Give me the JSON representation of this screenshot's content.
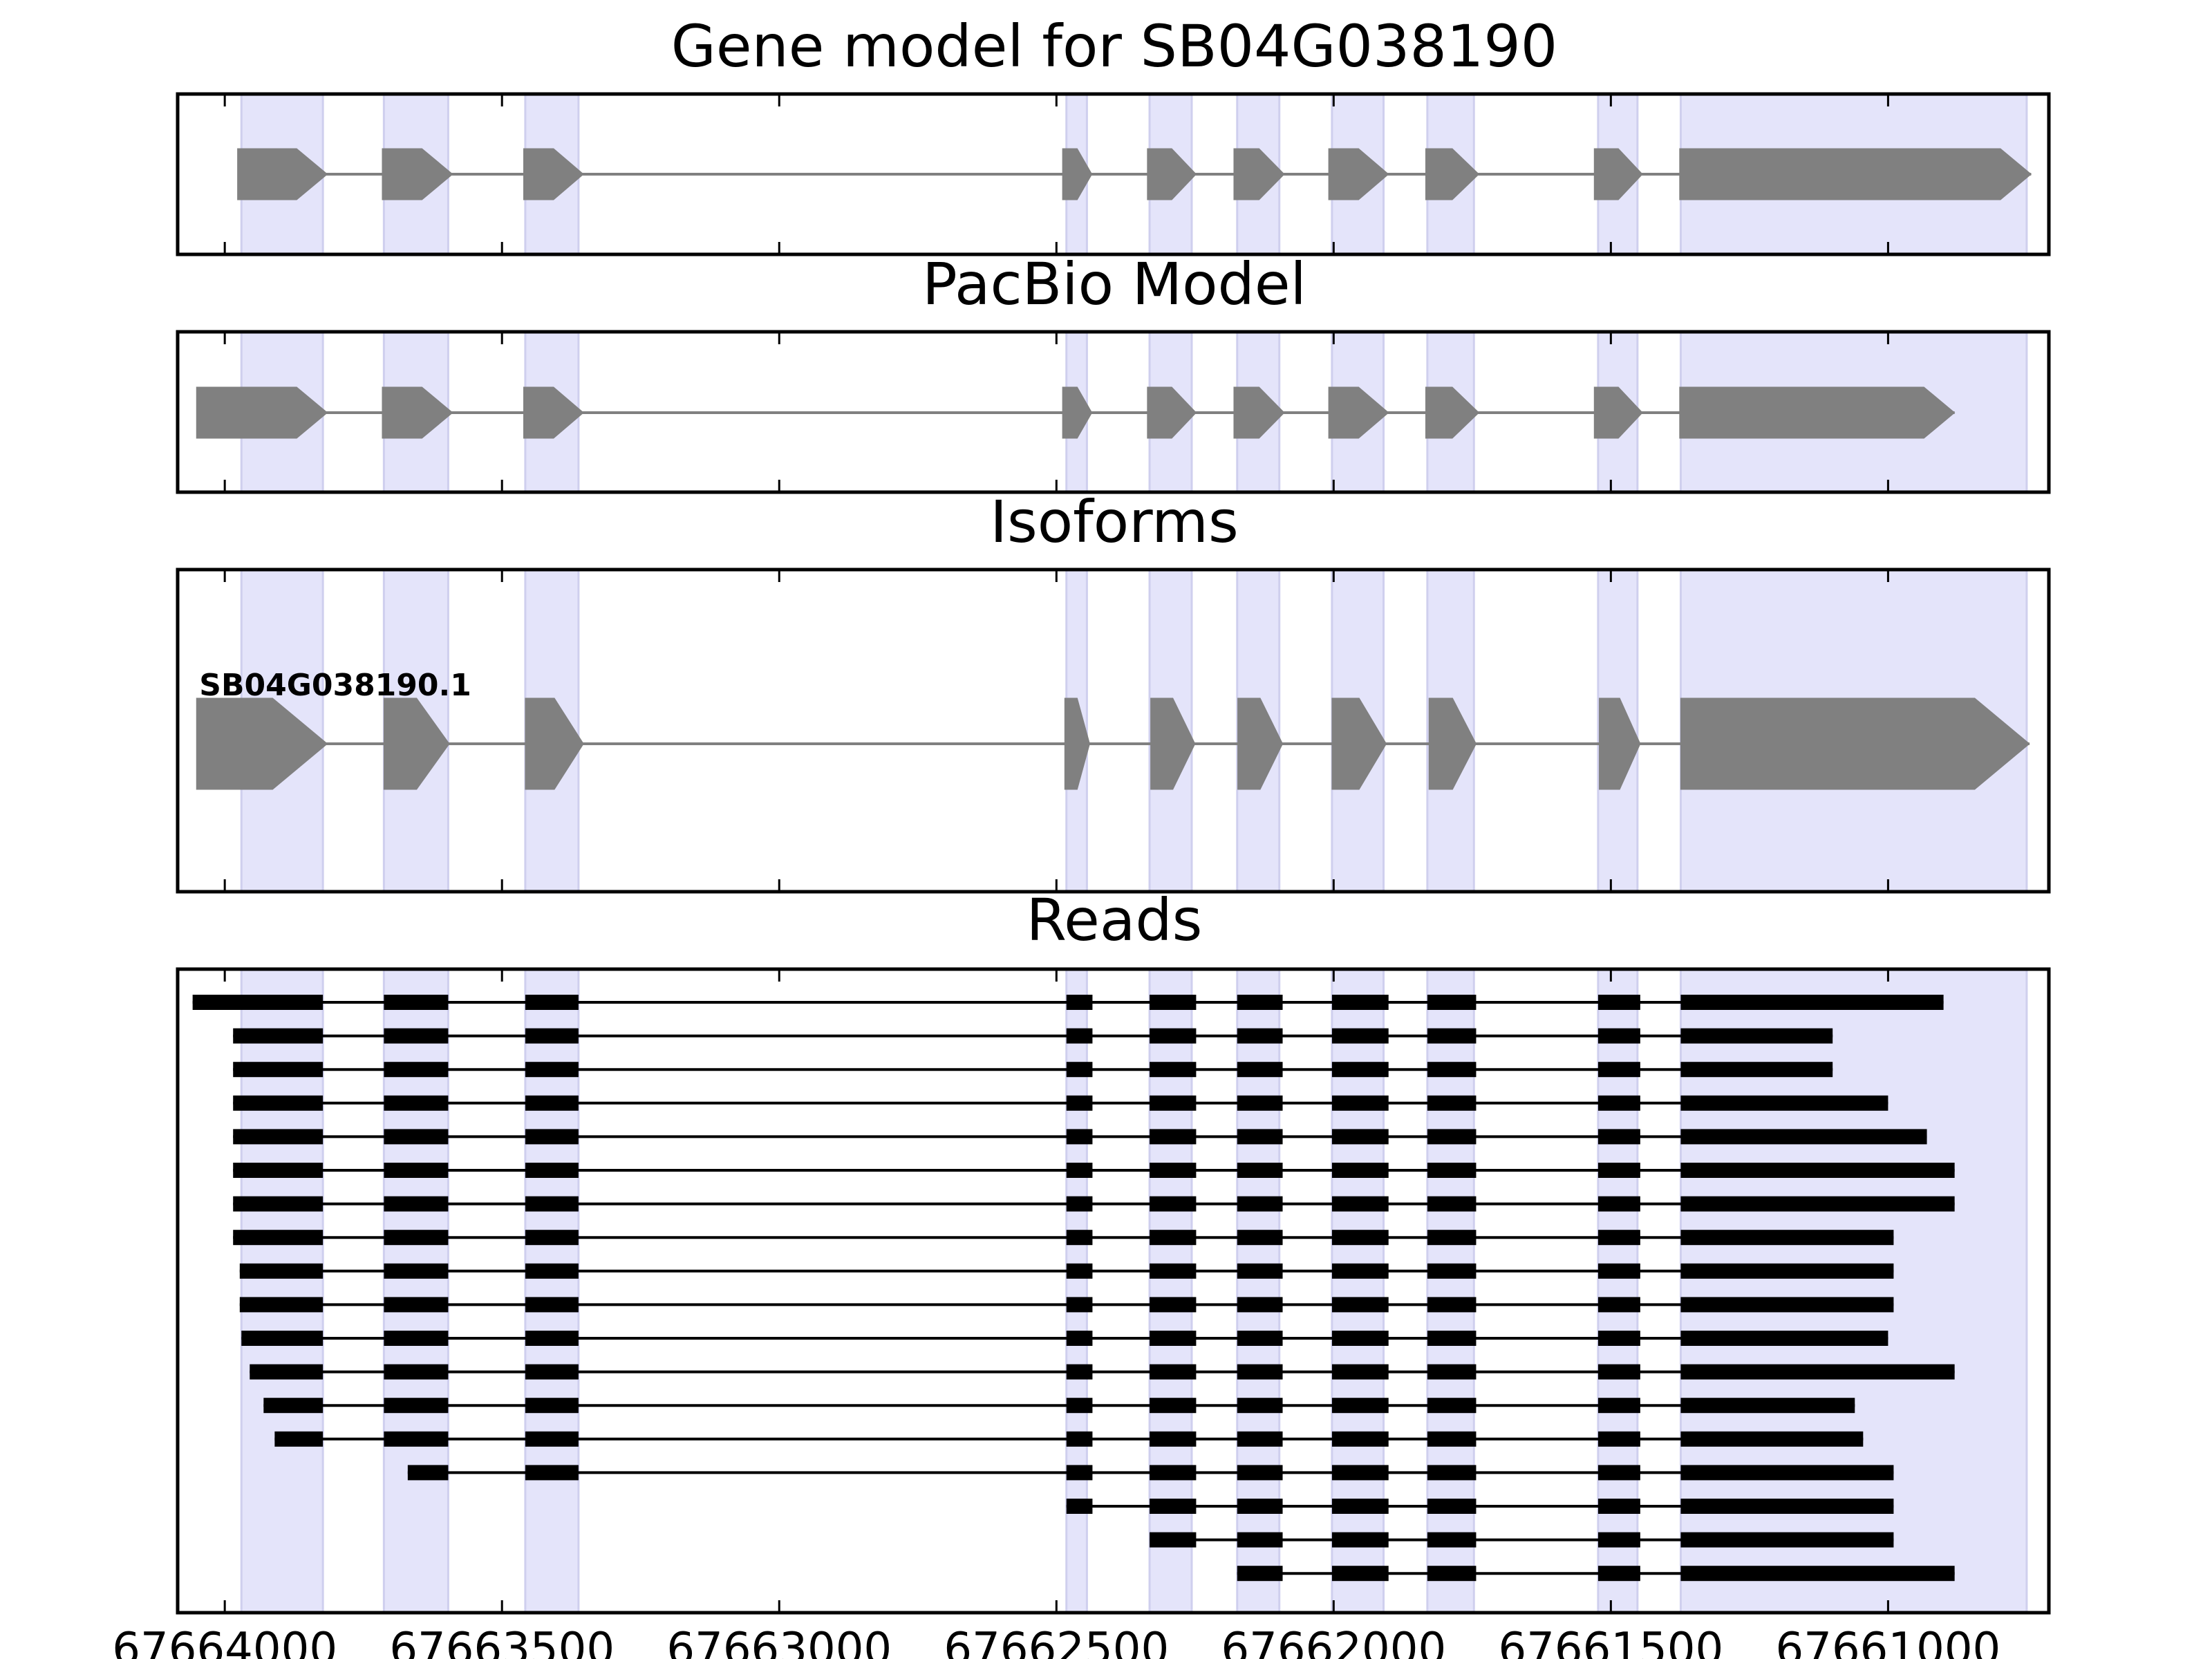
{
  "panels": [
    {
      "key": "gene_model",
      "title": "Gene model for SB04G038190"
    },
    {
      "key": "pacbio_model",
      "title": "PacBio Model"
    },
    {
      "key": "isoforms",
      "title": "Isoforms"
    },
    {
      "key": "reads",
      "title": "Reads"
    }
  ],
  "axis": {
    "x_min": 67664085,
    "x_max": 67660710,
    "ticks": [
      67664000,
      67663500,
      67663000,
      67662500,
      67662000,
      67661500,
      67661000
    ],
    "tick_labels": [
      "67664000",
      "67663500",
      "67663000",
      "67662500",
      "67662000",
      "67661500",
      "67661000"
    ]
  },
  "colors": {
    "exon_highlight": "#e4e4fa",
    "exon_highlight_edge": "#cfcfee",
    "model_exon": "#808080",
    "model_intron": "#808080",
    "read": "#000000",
    "frame": "#000000"
  },
  "exon_regions": [
    [
      67663970,
      67663823
    ],
    [
      67663713,
      67663597
    ],
    [
      67663458,
      67663362
    ],
    [
      67662482,
      67662445
    ],
    [
      67662332,
      67662256
    ],
    [
      67662174,
      67662098
    ],
    [
      67662003,
      67661910
    ],
    [
      67661831,
      67661747
    ],
    [
      67661523,
      67661452
    ],
    [
      67661374,
      67660750
    ]
  ],
  "gene_model": {
    "exons": [
      [
        67663977,
        67663815
      ],
      [
        67663716,
        67663589
      ],
      [
        67663461,
        67663353
      ],
      [
        67662489,
        67662436
      ],
      [
        67662336,
        67662248
      ],
      [
        67662180,
        67662089
      ],
      [
        67662009,
        67661901
      ],
      [
        67661834,
        67661738
      ],
      [
        67661530,
        67661443
      ],
      [
        67661376,
        67660742
      ]
    ]
  },
  "pacbio_model": {
    "exons": [
      [
        67664051,
        67663815
      ],
      [
        67663716,
        67663589
      ],
      [
        67663461,
        67663353
      ],
      [
        67662489,
        67662436
      ],
      [
        67662336,
        67662248
      ],
      [
        67662180,
        67662089
      ],
      [
        67662009,
        67661901
      ],
      [
        67661834,
        67661738
      ],
      [
        67661530,
        67661443
      ],
      [
        67661376,
        67660880
      ]
    ]
  },
  "isoforms": [
    {
      "label": "SB04G038190.1",
      "exons": [
        [
          67664051,
          67663815
        ],
        [
          67663713,
          67663595
        ],
        [
          67663458,
          67663353
        ],
        [
          67662485,
          67662440
        ],
        [
          67662330,
          67662250
        ],
        [
          67662173,
          67662092
        ],
        [
          67662003,
          67661905
        ],
        [
          67661828,
          67661743
        ],
        [
          67661521,
          67661447
        ],
        [
          67661374,
          67660745
        ]
      ]
    }
  ],
  "reads": [
    {
      "exons": [
        [
          67664058,
          67663823
        ],
        [
          67663713,
          67663597
        ],
        [
          67663458,
          67663362
        ],
        [
          67662482,
          67662435
        ],
        [
          67662332,
          67662248
        ],
        [
          67662174,
          67662092
        ],
        [
          67662003,
          67661901
        ],
        [
          67661831,
          67661743
        ],
        [
          67661523,
          67661447
        ],
        [
          67661374,
          67660900
        ]
      ]
    },
    {
      "exons": [
        [
          67663985,
          67663823
        ],
        [
          67663713,
          67663597
        ],
        [
          67663458,
          67663362
        ],
        [
          67662482,
          67662435
        ],
        [
          67662332,
          67662248
        ],
        [
          67662174,
          67662092
        ],
        [
          67662003,
          67661901
        ],
        [
          67661831,
          67661743
        ],
        [
          67661523,
          67661447
        ],
        [
          67661374,
          67661100
        ]
      ]
    },
    {
      "exons": [
        [
          67663985,
          67663823
        ],
        [
          67663713,
          67663597
        ],
        [
          67663458,
          67663362
        ],
        [
          67662482,
          67662435
        ],
        [
          67662332,
          67662248
        ],
        [
          67662174,
          67662092
        ],
        [
          67662003,
          67661901
        ],
        [
          67661831,
          67661743
        ],
        [
          67661523,
          67661447
        ],
        [
          67661374,
          67661100
        ]
      ]
    },
    {
      "exons": [
        [
          67663985,
          67663823
        ],
        [
          67663713,
          67663597
        ],
        [
          67663458,
          67663362
        ],
        [
          67662482,
          67662435
        ],
        [
          67662332,
          67662248
        ],
        [
          67662174,
          67662092
        ],
        [
          67662003,
          67661901
        ],
        [
          67661831,
          67661743
        ],
        [
          67661523,
          67661447
        ],
        [
          67661374,
          67661000
        ]
      ]
    },
    {
      "exons": [
        [
          67663985,
          67663823
        ],
        [
          67663713,
          67663597
        ],
        [
          67663458,
          67663362
        ],
        [
          67662482,
          67662435
        ],
        [
          67662332,
          67662248
        ],
        [
          67662174,
          67662092
        ],
        [
          67662003,
          67661901
        ],
        [
          67661831,
          67661743
        ],
        [
          67661523,
          67661447
        ],
        [
          67661374,
          67660930
        ]
      ]
    },
    {
      "exons": [
        [
          67663985,
          67663823
        ],
        [
          67663713,
          67663597
        ],
        [
          67663458,
          67663362
        ],
        [
          67662482,
          67662435
        ],
        [
          67662332,
          67662248
        ],
        [
          67662174,
          67662092
        ],
        [
          67662003,
          67661901
        ],
        [
          67661831,
          67661743
        ],
        [
          67661523,
          67661447
        ],
        [
          67661374,
          67660880
        ]
      ]
    },
    {
      "exons": [
        [
          67663985,
          67663823
        ],
        [
          67663713,
          67663597
        ],
        [
          67663458,
          67663362
        ],
        [
          67662482,
          67662435
        ],
        [
          67662332,
          67662248
        ],
        [
          67662174,
          67662092
        ],
        [
          67662003,
          67661901
        ],
        [
          67661831,
          67661743
        ],
        [
          67661523,
          67661447
        ],
        [
          67661374,
          67660880
        ]
      ]
    },
    {
      "exons": [
        [
          67663985,
          67663823
        ],
        [
          67663713,
          67663597
        ],
        [
          67663458,
          67663362
        ],
        [
          67662482,
          67662435
        ],
        [
          67662332,
          67662248
        ],
        [
          67662174,
          67662092
        ],
        [
          67662003,
          67661901
        ],
        [
          67661831,
          67661743
        ],
        [
          67661523,
          67661447
        ],
        [
          67661374,
          67660990
        ]
      ]
    },
    {
      "exons": [
        [
          67663973,
          67663823
        ],
        [
          67663713,
          67663597
        ],
        [
          67663458,
          67663362
        ],
        [
          67662482,
          67662435
        ],
        [
          67662332,
          67662248
        ],
        [
          67662174,
          67662092
        ],
        [
          67662003,
          67661901
        ],
        [
          67661831,
          67661743
        ],
        [
          67661523,
          67661447
        ],
        [
          67661374,
          67660990
        ]
      ]
    },
    {
      "exons": [
        [
          67663973,
          67663823
        ],
        [
          67663713,
          67663597
        ],
        [
          67663458,
          67663362
        ],
        [
          67662482,
          67662435
        ],
        [
          67662332,
          67662248
        ],
        [
          67662174,
          67662092
        ],
        [
          67662003,
          67661901
        ],
        [
          67661831,
          67661743
        ],
        [
          67661523,
          67661447
        ],
        [
          67661374,
          67660990
        ]
      ]
    },
    {
      "exons": [
        [
          67663970,
          67663823
        ],
        [
          67663713,
          67663597
        ],
        [
          67663458,
          67663362
        ],
        [
          67662482,
          67662435
        ],
        [
          67662332,
          67662248
        ],
        [
          67662174,
          67662092
        ],
        [
          67662003,
          67661901
        ],
        [
          67661831,
          67661743
        ],
        [
          67661523,
          67661447
        ],
        [
          67661374,
          67661000
        ]
      ]
    },
    {
      "exons": [
        [
          67663955,
          67663823
        ],
        [
          67663713,
          67663597
        ],
        [
          67663458,
          67663362
        ],
        [
          67662482,
          67662435
        ],
        [
          67662332,
          67662248
        ],
        [
          67662174,
          67662092
        ],
        [
          67662003,
          67661901
        ],
        [
          67661831,
          67661743
        ],
        [
          67661523,
          67661447
        ],
        [
          67661374,
          67660880
        ]
      ]
    },
    {
      "exons": [
        [
          67663930,
          67663823
        ],
        [
          67663713,
          67663597
        ],
        [
          67663458,
          67663362
        ],
        [
          67662482,
          67662435
        ],
        [
          67662332,
          67662248
        ],
        [
          67662174,
          67662092
        ],
        [
          67662003,
          67661901
        ],
        [
          67661831,
          67661743
        ],
        [
          67661523,
          67661447
        ],
        [
          67661374,
          67661060
        ]
      ]
    },
    {
      "exons": [
        [
          67663910,
          67663823
        ],
        [
          67663713,
          67663597
        ],
        [
          67663458,
          67663362
        ],
        [
          67662482,
          67662435
        ],
        [
          67662332,
          67662248
        ],
        [
          67662174,
          67662092
        ],
        [
          67662003,
          67661901
        ],
        [
          67661831,
          67661743
        ],
        [
          67661523,
          67661447
        ],
        [
          67661374,
          67661045
        ]
      ]
    },
    {
      "exons": [
        [
          67663670,
          67663597
        ],
        [
          67663458,
          67663362
        ],
        [
          67662482,
          67662435
        ],
        [
          67662332,
          67662248
        ],
        [
          67662174,
          67662092
        ],
        [
          67662003,
          67661901
        ],
        [
          67661831,
          67661743
        ],
        [
          67661523,
          67661447
        ],
        [
          67661374,
          67660990
        ]
      ]
    },
    {
      "exons": [
        [
          67662482,
          67662435
        ],
        [
          67662332,
          67662248
        ],
        [
          67662174,
          67662092
        ],
        [
          67662003,
          67661901
        ],
        [
          67661831,
          67661743
        ],
        [
          67661523,
          67661447
        ],
        [
          67661374,
          67660990
        ]
      ]
    },
    {
      "exons": [
        [
          67662332,
          67662248
        ],
        [
          67662174,
          67662092
        ],
        [
          67662003,
          67661901
        ],
        [
          67661831,
          67661743
        ],
        [
          67661523,
          67661447
        ],
        [
          67661374,
          67660990
        ]
      ]
    },
    {
      "exons": [
        [
          67662174,
          67662092
        ],
        [
          67662003,
          67661901
        ],
        [
          67661831,
          67661743
        ],
        [
          67661523,
          67661447
        ],
        [
          67661374,
          67660880
        ]
      ]
    }
  ]
}
